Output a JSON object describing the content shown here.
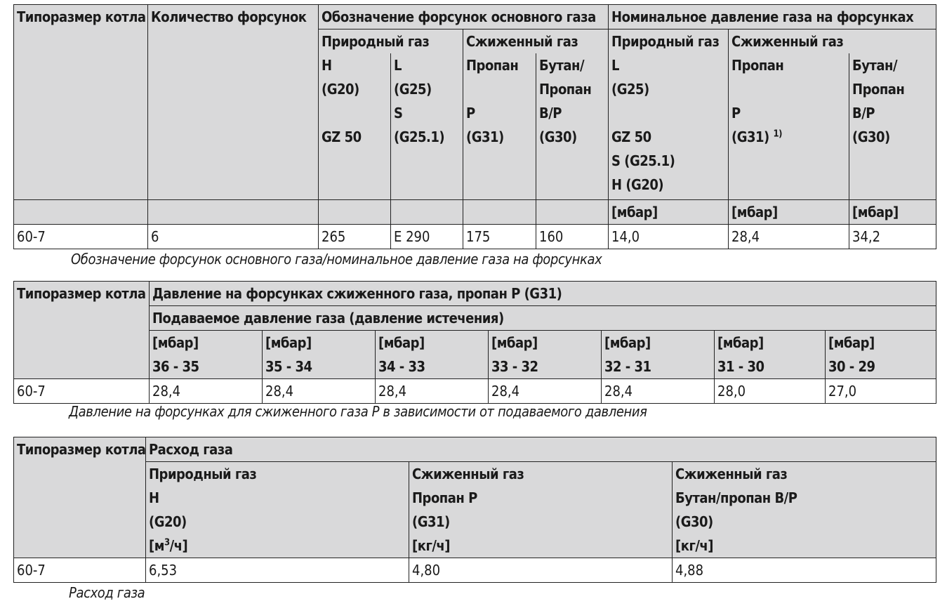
{
  "table1": {
    "h_size": "Типоразмер котла",
    "h_count": "Количество форсунок",
    "h_nozzles": "Обозначение форсунок основного газа",
    "h_pressure": "Номинальное давление газа на форсунках",
    "h_natural": "Природный газ",
    "h_liquefied": "Сжиженный газ",
    "h_natural2": "Природный газ",
    "h_liquefied2": "Сжиженный газ",
    "c_h": [
      "H",
      "(G20)",
      "",
      "GZ 50"
    ],
    "c_l": [
      "L",
      "(G25)",
      "S",
      "(G25.1)"
    ],
    "c_propane": [
      "Пропан",
      "",
      "P",
      "(G31)"
    ],
    "c_butane": [
      "Бутан/",
      "Пропан",
      "B/P",
      "(G30)"
    ],
    "c_l2": [
      "L",
      "(G25)",
      "",
      "GZ 50",
      "S (G25.1)",
      "H (G20)"
    ],
    "c_propane2": [
      "Пропан",
      "",
      "P",
      "(G31)"
    ],
    "c_propane2_sup": "1)",
    "c_butane2": [
      "Бутан/",
      "Пропан",
      "B/P",
      "(G30)"
    ],
    "unit": "[мбар]",
    "row": [
      "60-7",
      "6",
      "265",
      "E 290",
      "175",
      "160",
      "14,0",
      "28,4",
      "34,2"
    ]
  },
  "caption1": "Обозначение форсунок основного газа/номинальное давление газа на форсунках",
  "table2": {
    "h_size": "Типоразмер котла",
    "h_title": "Давление на форсунках сжиженного газа, пропан P (G31)",
    "h_sub": "Подаваемое давление газа (давление истечения)",
    "unit": "[мбар]",
    "ranges": [
      "36 - 35",
      "35 - 34",
      "34 - 33",
      "33 - 32",
      "32 - 31",
      "31 - 30",
      "30 - 29"
    ],
    "row_label": "60-7",
    "values": [
      "28,4",
      "28,4",
      "28,4",
      "28,4",
      "28,4",
      "28,0",
      "27,0"
    ]
  },
  "caption2": "Давление на форсунках для сжиженного газа P в зависимости от подаваемого давления",
  "table3": {
    "h_size": "Типоразмер котла",
    "h_title": "Расход газа",
    "col1": [
      "Природный газ",
      "H",
      "(G20)"
    ],
    "col1_unit_a": "[м",
    "col1_unit_sup": "3",
    "col1_unit_b": "/ч]",
    "col2": [
      "Сжиженный газ",
      "Пропан P",
      "(G31)",
      "[кг/ч]"
    ],
    "col3": [
      "Сжиженный газ",
      "Бутан/пропан B/P",
      "(G30)",
      "[кг/ч]"
    ],
    "row": [
      "60-7",
      "6,53",
      "4,80",
      "4,88"
    ]
  },
  "caption3": "Расход газа"
}
